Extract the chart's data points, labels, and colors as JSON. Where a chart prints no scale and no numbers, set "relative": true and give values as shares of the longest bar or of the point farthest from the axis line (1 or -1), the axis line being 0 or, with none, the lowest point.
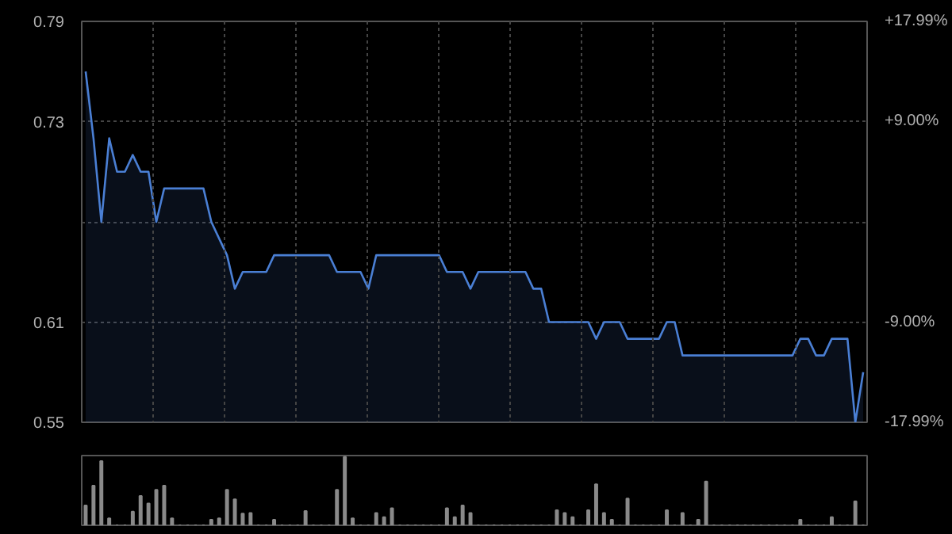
{
  "chart_data": [
    {
      "type": "area",
      "categories": [
        null,
        null,
        null,
        null,
        null,
        null,
        null,
        null,
        null,
        null,
        null,
        null,
        null,
        null,
        null,
        null,
        null,
        null,
        null,
        null,
        null,
        null,
        null,
        null,
        null,
        null,
        null,
        null,
        null,
        null,
        null,
        null,
        null,
        null,
        null,
        null,
        null,
        null,
        null,
        null,
        null,
        null,
        null,
        null,
        null,
        null,
        null,
        null,
        null,
        null,
        null,
        null,
        null,
        null,
        null,
        null,
        null,
        null,
        null,
        null,
        null,
        null,
        null,
        null,
        null,
        null,
        null,
        null,
        null,
        null,
        null,
        null,
        null,
        null,
        null,
        null,
        null,
        null,
        null,
        null,
        null,
        null,
        null,
        null,
        null,
        null,
        null,
        null,
        null,
        null,
        null,
        null,
        null,
        null,
        null,
        null,
        null,
        null,
        null,
        null
      ],
      "series": [
        {
          "color": "#4a7fd4",
          "values": [
            0.76,
            0.72,
            0.67,
            0.72,
            0.7,
            0.7,
            0.71,
            0.7,
            0.7,
            0.67,
            0.69,
            0.69,
            0.69,
            0.69,
            0.69,
            0.69,
            0.67,
            0.66,
            0.65,
            0.63,
            0.64,
            0.64,
            0.64,
            0.64,
            0.65,
            0.65,
            0.65,
            0.65,
            0.65,
            0.65,
            0.65,
            0.65,
            0.64,
            0.64,
            0.64,
            0.64,
            0.63,
            0.65,
            0.65,
            0.65,
            0.65,
            0.65,
            0.65,
            0.65,
            0.65,
            0.65,
            0.64,
            0.64,
            0.64,
            0.63,
            0.64,
            0.64,
            0.64,
            0.64,
            0.64,
            0.64,
            0.64,
            0.63,
            0.63,
            0.61,
            0.61,
            0.61,
            0.61,
            0.61,
            0.61,
            0.6,
            0.61,
            0.61,
            0.61,
            0.6,
            0.6,
            0.6,
            0.6,
            0.6,
            0.61,
            0.61,
            0.59,
            0.59,
            0.59,
            0.59,
            0.59,
            0.59,
            0.59,
            0.59,
            0.59,
            0.59,
            0.59,
            0.59,
            0.59,
            0.59,
            0.59,
            0.6,
            0.6,
            0.59,
            0.59,
            0.6,
            0.6,
            0.6,
            0.55,
            0.58
          ]
        }
      ],
      "ylim": [
        0.55,
        0.79
      ],
      "yticks": [
        0.55,
        0.61,
        {
          "value": 0.67,
          "label": null
        },
        0.73,
        0.79
      ],
      "y2lim": [
        -17.99,
        17.99
      ],
      "y2ticks": [
        {
          "value": -17.99,
          "label": "-17.99%"
        },
        {
          "value": -9.0,
          "label": "-9.00%"
        },
        {
          "value": 0,
          "label": null
        },
        {
          "value": 9.0,
          "label": "+9.00%"
        },
        {
          "value": 17.99,
          "label": "+17.99%"
        }
      ],
      "grid": true
    },
    {
      "type": "bar",
      "relative": true,
      "categories": [
        null,
        null,
        null,
        null,
        null,
        null,
        null,
        null,
        null,
        null,
        null,
        null,
        null,
        null,
        null,
        null,
        null,
        null,
        null,
        null,
        null,
        null,
        null,
        null,
        null,
        null,
        null,
        null,
        null,
        null,
        null,
        null,
        null,
        null,
        null,
        null,
        null,
        null,
        null,
        null,
        null,
        null,
        null,
        null,
        null,
        null,
        null,
        null,
        null,
        null,
        null,
        null,
        null,
        null,
        null,
        null,
        null,
        null,
        null,
        null,
        null,
        null,
        null,
        null,
        null,
        null,
        null,
        null,
        null,
        null,
        null,
        null,
        null,
        null,
        null,
        null,
        null,
        null,
        null,
        null,
        null,
        null,
        null,
        null,
        null,
        null,
        null,
        null,
        null,
        null,
        null,
        null,
        null,
        null,
        null,
        null,
        null,
        null,
        null,
        null
      ],
      "color": "#8a8a8a",
      "values": [
        0.29,
        0.58,
        0.94,
        0.1,
        0,
        0,
        0.2,
        0.43,
        0.32,
        0.52,
        0.58,
        0.1,
        0,
        0,
        0,
        0,
        0.08,
        0.1,
        0.52,
        0.38,
        0.17,
        0.18,
        0,
        0,
        0.08,
        0,
        0,
        0,
        0.21,
        0,
        0,
        0,
        0.52,
        1,
        0.1,
        0,
        0,
        0.18,
        0.12,
        0.25,
        0,
        0,
        0,
        0,
        0,
        0,
        0.25,
        0.12,
        0.29,
        0.18,
        0,
        0,
        0,
        0,
        0,
        0,
        0,
        0,
        0,
        0,
        0.22,
        0.18,
        0.12,
        0,
        0.22,
        0.6,
        0.18,
        0.08,
        0,
        0.39,
        0,
        0,
        0,
        0,
        0.22,
        0,
        0.18,
        0,
        0.08,
        0.64,
        0,
        0,
        0,
        0,
        0,
        0,
        0,
        0,
        0,
        0,
        0,
        0.08,
        0,
        0,
        0,
        0.12,
        0,
        0,
        0.35,
        0
      ]
    }
  ]
}
